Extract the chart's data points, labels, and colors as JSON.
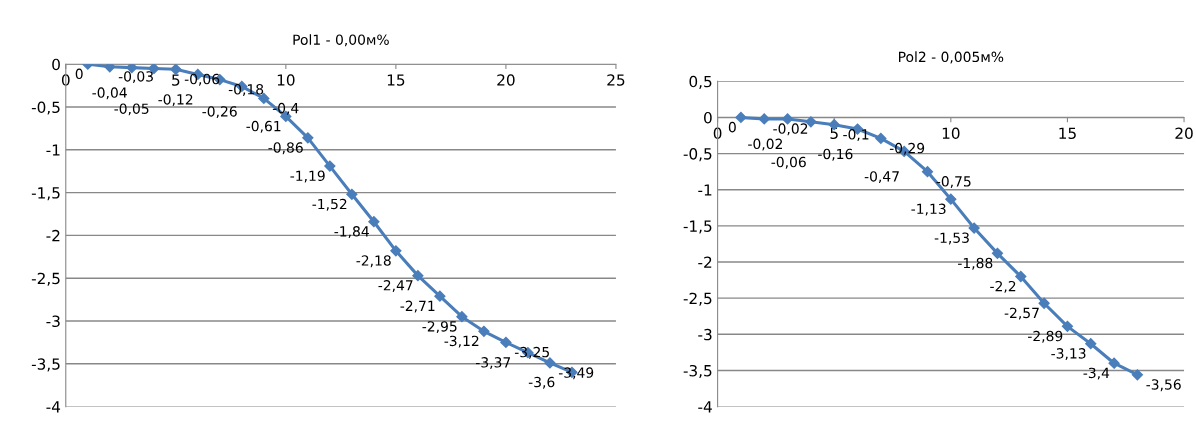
{
  "chart_data": [
    {
      "type": "line",
      "title": "Pol1 - 0,00м%",
      "x": [
        1,
        2,
        3,
        4,
        5,
        6,
        7,
        8,
        9,
        10,
        11,
        12,
        13,
        14,
        15,
        16,
        17,
        18,
        19,
        20,
        21,
        22,
        23
      ],
      "series": [
        {
          "color": "#4a7ebb",
          "values": [
            0,
            -0.03,
            -0.04,
            -0.05,
            -0.06,
            -0.12,
            -0.18,
            -0.26,
            -0.4,
            -0.61,
            -0.86,
            -1.19,
            -1.52,
            -1.84,
            -2.18,
            -2.47,
            -2.71,
            -2.95,
            -3.12,
            -3.25,
            -3.37,
            -3.49,
            -3.6
          ],
          "value_labels": [
            "0",
            "-0,03",
            "-0,04",
            "-0,05",
            "-0,06",
            "-0,12",
            "-0,18",
            "-0,26",
            "-0,4",
            "-0,61",
            "-0,86",
            "-1,19",
            "-1,52",
            "-1,84",
            "-2,18",
            "-2,47",
            "-2,71",
            "-2,95",
            "-3,12",
            "-3,25",
            "-3,37",
            "-3,49",
            "-3,6"
          ]
        }
      ],
      "xlim": [
        0,
        25
      ],
      "xticks": [
        0,
        5,
        10,
        15,
        20,
        25
      ],
      "ylim": [
        -4,
        0
      ],
      "yticks": [
        {
          "value": 0,
          "label": "0"
        },
        {
          "value": -0.5,
          "label": "-0,5"
        },
        {
          "value": -1,
          "label": "-1"
        },
        {
          "value": -1.5,
          "label": "-1,5"
        },
        {
          "value": -2,
          "label": "-2"
        },
        {
          "value": -2.5,
          "label": "-2,5"
        },
        {
          "value": -3,
          "label": "-3"
        },
        {
          "value": -3.5,
          "label": "-3,5"
        },
        {
          "value": -4,
          "label": "-4"
        }
      ],
      "grid": "y",
      "marker": "diamond",
      "line_style": "solid",
      "legend": false
    },
    {
      "type": "line",
      "title": "Pol2 - 0,005м%",
      "x": [
        1,
        2,
        3,
        4,
        5,
        6,
        7,
        8,
        9,
        10,
        11,
        12,
        13,
        14,
        15,
        16,
        17,
        18
      ],
      "series": [
        {
          "color": "#4a7ebb",
          "values": [
            0,
            -0.02,
            -0.02,
            -0.06,
            -0.1,
            -0.16,
            -0.29,
            -0.47,
            -0.75,
            -1.13,
            -1.53,
            -1.88,
            -2.2,
            -2.57,
            -2.89,
            -3.13,
            -3.4,
            -3.56
          ],
          "value_labels": [
            "0",
            "-0,02",
            "-0,02",
            "-0,06",
            "-0,1",
            "-0,16",
            "-0,29",
            "-0,47",
            "-0,75",
            "-1,13",
            "-1,53",
            "-1,88",
            "-2,2",
            "-2,57",
            "-2,89",
            "-3,13",
            "-3,4",
            "-3,56"
          ]
        }
      ],
      "xlim": [
        0,
        20
      ],
      "xticks": [
        0,
        5,
        10,
        15,
        20
      ],
      "ylim": [
        -4,
        0.5
      ],
      "yticks": [
        {
          "value": 0.5,
          "label": "0,5"
        },
        {
          "value": 0,
          "label": "0"
        },
        {
          "value": -0.5,
          "label": "-0,5"
        },
        {
          "value": -1,
          "label": "-1"
        },
        {
          "value": -1.5,
          "label": "-1,5"
        },
        {
          "value": -2,
          "label": "-2"
        },
        {
          "value": -2.5,
          "label": "-2,5"
        },
        {
          "value": -3,
          "label": "-3"
        },
        {
          "value": -3.5,
          "label": "-3,5"
        },
        {
          "value": -4,
          "label": "-4"
        }
      ],
      "grid": "y",
      "marker": "diamond",
      "line_style": "solid",
      "legend": false
    }
  ]
}
